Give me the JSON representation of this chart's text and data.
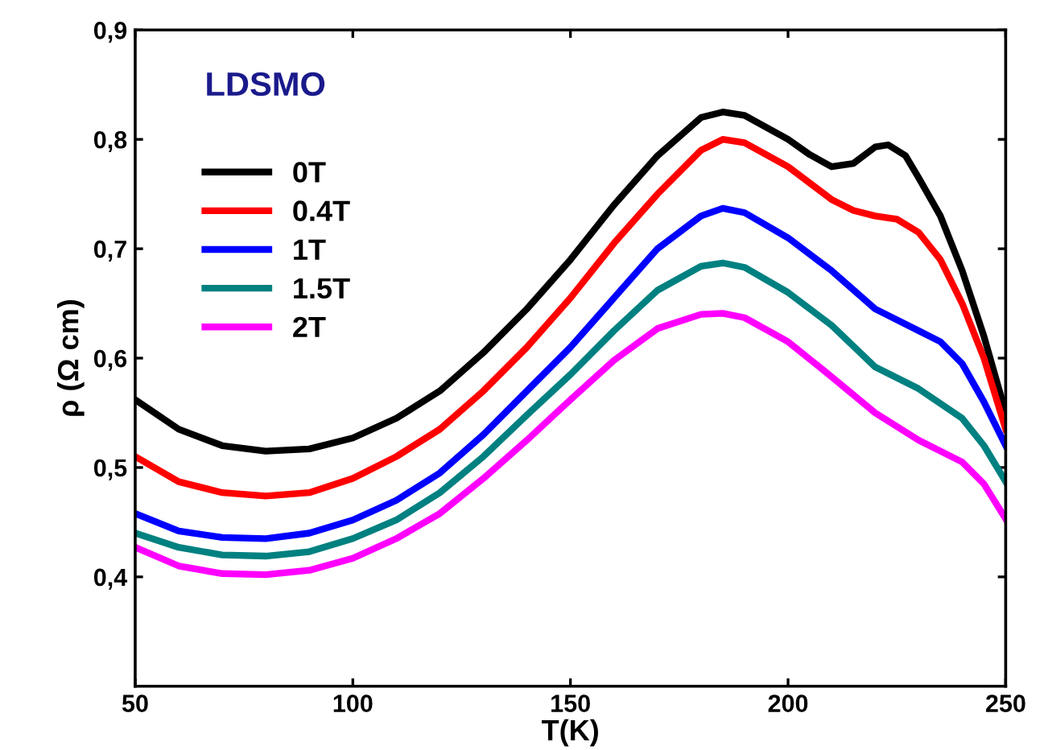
{
  "chart_data": {
    "type": "line",
    "xlabel": "T(K)",
    "ylabel": "ρ (Ω cm)",
    "annotations": [
      "LDSMO"
    ],
    "x": [
      50,
      60,
      70,
      80,
      90,
      100,
      110,
      120,
      130,
      140,
      150,
      160,
      170,
      180,
      185,
      190,
      200,
      210,
      220,
      230,
      240,
      245,
      250
    ],
    "series": [
      {
        "name": "0T",
        "color": "#000000",
        "x": [
          50,
          60,
          70,
          80,
          90,
          100,
          110,
          120,
          130,
          140,
          150,
          160,
          170,
          180,
          185,
          190,
          200,
          205,
          210,
          215,
          220,
          223,
          227,
          230,
          235,
          240,
          245,
          250
        ],
        "values": [
          0.562,
          0.535,
          0.52,
          0.515,
          0.517,
          0.527,
          0.545,
          0.57,
          0.605,
          0.645,
          0.69,
          0.74,
          0.785,
          0.82,
          0.825,
          0.822,
          0.8,
          0.786,
          0.775,
          0.778,
          0.793,
          0.795,
          0.785,
          0.765,
          0.73,
          0.68,
          0.62,
          0.55
        ]
      },
      {
        "name": "0.4T",
        "color": "#ff0000",
        "x": [
          50,
          60,
          70,
          80,
          90,
          100,
          110,
          120,
          130,
          140,
          150,
          160,
          170,
          180,
          185,
          190,
          200,
          210,
          215,
          220,
          225,
          230,
          235,
          240,
          245,
          250
        ],
        "values": [
          0.51,
          0.487,
          0.477,
          0.474,
          0.477,
          0.49,
          0.51,
          0.535,
          0.57,
          0.61,
          0.655,
          0.705,
          0.75,
          0.79,
          0.8,
          0.797,
          0.775,
          0.745,
          0.735,
          0.73,
          0.727,
          0.715,
          0.69,
          0.65,
          0.6,
          0.535
        ]
      },
      {
        "name": "1T",
        "color": "#0000ff",
        "x": [
          50,
          60,
          70,
          80,
          90,
          100,
          110,
          120,
          130,
          140,
          150,
          160,
          170,
          180,
          185,
          190,
          200,
          210,
          220,
          230,
          235,
          240,
          245,
          250
        ],
        "values": [
          0.458,
          0.442,
          0.436,
          0.435,
          0.44,
          0.452,
          0.47,
          0.495,
          0.53,
          0.57,
          0.61,
          0.655,
          0.7,
          0.73,
          0.737,
          0.733,
          0.71,
          0.68,
          0.645,
          0.625,
          0.615,
          0.595,
          0.56,
          0.52
        ]
      },
      {
        "name": "1.5T",
        "color": "#008080",
        "values": [
          0.44,
          0.427,
          0.42,
          0.419,
          0.423,
          0.435,
          0.452,
          0.477,
          0.51,
          0.548,
          0.585,
          0.625,
          0.662,
          0.684,
          0.687,
          0.683,
          0.66,
          0.63,
          0.592,
          0.572,
          0.545,
          0.52,
          0.487
        ]
      },
      {
        "name": "2T",
        "color": "#ff00ff",
        "values": [
          0.427,
          0.41,
          0.403,
          0.402,
          0.406,
          0.417,
          0.435,
          0.458,
          0.49,
          0.525,
          0.562,
          0.598,
          0.627,
          0.64,
          0.641,
          0.637,
          0.615,
          0.583,
          0.55,
          0.525,
          0.505,
          0.485,
          0.453
        ]
      }
    ],
    "xlim": [
      50,
      250
    ],
    "xticks": [
      50,
      100,
      150,
      200,
      250
    ],
    "ylim": [
      0.3,
      0.9
    ],
    "yticks": [
      {
        "value": 0.4,
        "label": "0,4"
      },
      {
        "value": 0.5,
        "label": "0,5"
      },
      {
        "value": 0.6,
        "label": "0,6"
      },
      {
        "value": 0.7,
        "label": "0,7"
      },
      {
        "value": 0.8,
        "label": "0,8"
      },
      {
        "value": 0.9,
        "label": "0,9"
      }
    ],
    "legend": "top left",
    "grid": false
  }
}
